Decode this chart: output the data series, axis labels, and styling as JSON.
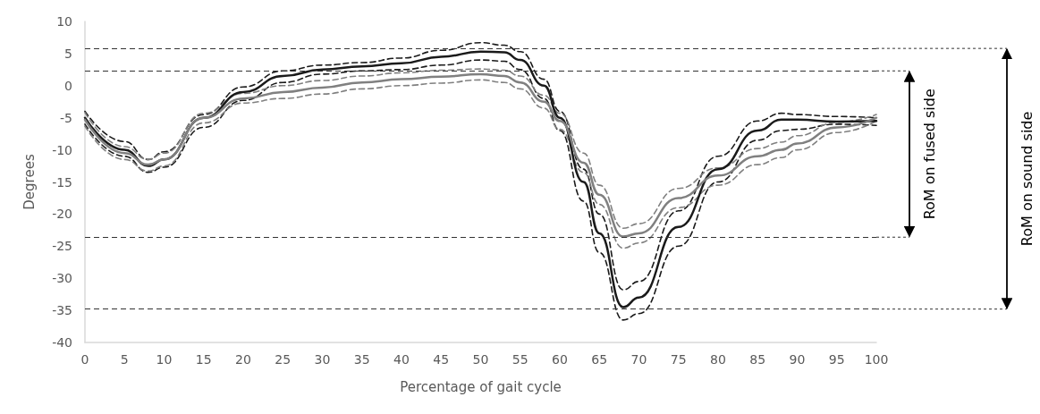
{
  "chart_data": {
    "type": "line",
    "xlabel": "Percentage of gait cycle",
    "ylabel": "Degrees",
    "xlim": [
      0,
      100
    ],
    "xticks": [
      0,
      5,
      10,
      15,
      20,
      25,
      30,
      35,
      40,
      45,
      50,
      55,
      60,
      65,
      70,
      75,
      80,
      85,
      90,
      95,
      100
    ],
    "ylim": [
      -40,
      10
    ],
    "yticks": [
      -40,
      -35,
      -30,
      -25,
      -20,
      -15,
      -10,
      -5,
      0,
      5,
      10
    ],
    "marker": "none",
    "x": [
      0,
      5,
      8,
      10,
      15,
      20,
      25,
      30,
      35,
      40,
      45,
      50,
      53,
      55,
      58,
      60,
      63,
      65,
      68,
      70,
      75,
      80,
      85,
      88,
      90,
      95,
      100
    ],
    "series": [
      {
        "color": "#1a1a1a",
        "line_style": "solid",
        "values": [
          -5,
          -10,
          -12.5,
          -11.5,
          -5,
          -1,
          1.5,
          2.5,
          3,
          3.5,
          4.5,
          5.3,
          5.2,
          4,
          0,
          -5,
          -15,
          -23,
          -34.5,
          -33,
          -22,
          -13,
          -7,
          -5.3,
          -5.3,
          -5.6,
          -5.5
        ]
      },
      {
        "color": "#1a1a1a",
        "line_style": "dashed",
        "values": [
          -4,
          -8.7,
          -11.5,
          -10.3,
          -4.5,
          -0.2,
          2.3,
          3.2,
          3.6,
          4.3,
          5.5,
          6.7,
          6.3,
          5.3,
          1,
          -4,
          -13,
          -20,
          -31.8,
          -30.5,
          -19.5,
          -11,
          -5.5,
          -4.3,
          -4.5,
          -4.8,
          -5
        ]
      },
      {
        "color": "#1a1a1a",
        "line_style": "dashed",
        "values": [
          -6,
          -11,
          -13.5,
          -12.7,
          -6.5,
          -2.3,
          0.5,
          1.8,
          2.3,
          2.5,
          3.2,
          4,
          3.8,
          2.5,
          -2,
          -7,
          -18,
          -26,
          -36.5,
          -35.5,
          -25,
          -15,
          -8.5,
          -7,
          -6.8,
          -6,
          -6.2
        ]
      },
      {
        "color": "#808080",
        "line_style": "solid",
        "values": [
          -5.3,
          -10.5,
          -12.3,
          -11.5,
          -5,
          -2,
          -1,
          -0.3,
          0.5,
          1,
          1.4,
          1.8,
          1.5,
          0.5,
          -2.5,
          -5.5,
          -12,
          -17,
          -23.5,
          -23,
          -17.5,
          -14,
          -11,
          -10,
          -9,
          -6.5,
          -5
        ]
      },
      {
        "color": "#808080",
        "line_style": "dashed",
        "values": [
          -4.2,
          -9.5,
          -11.5,
          -10.5,
          -4.3,
          -1.2,
          0,
          0.8,
          1.5,
          2,
          2.4,
          2.6,
          2.4,
          1.5,
          -1.5,
          -4.3,
          -10.5,
          -15.5,
          -22.2,
          -21.5,
          -16,
          -12.8,
          -9.8,
          -8.8,
          -7.8,
          -5.7,
          -4.5
        ]
      },
      {
        "color": "#808080",
        "line_style": "dashed",
        "values": [
          -6.3,
          -11.5,
          -13.3,
          -12.5,
          -5.8,
          -2.7,
          -2,
          -1.3,
          -0.5,
          0,
          0.4,
          0.9,
          0.5,
          -0.5,
          -3.5,
          -6.8,
          -13.5,
          -18.5,
          -25.3,
          -24.5,
          -19,
          -15.5,
          -12.3,
          -11.2,
          -10,
          -7.3,
          -5.5
        ]
      }
    ],
    "ref_lines": [
      {
        "axis": "y",
        "value": 2.3,
        "line_style": "dashed",
        "color": "#333333"
      },
      {
        "axis": "y",
        "value": -23.6,
        "line_style": "dashed",
        "color": "#333333"
      },
      {
        "axis": "y",
        "value": 5.8,
        "line_style": "dashed",
        "color": "#333333"
      },
      {
        "axis": "y",
        "value": -34.8,
        "line_style": "dashed",
        "color": "#333333"
      }
    ],
    "annotations": [
      "RoM on fused side",
      "RoM on sound side"
    ]
  }
}
